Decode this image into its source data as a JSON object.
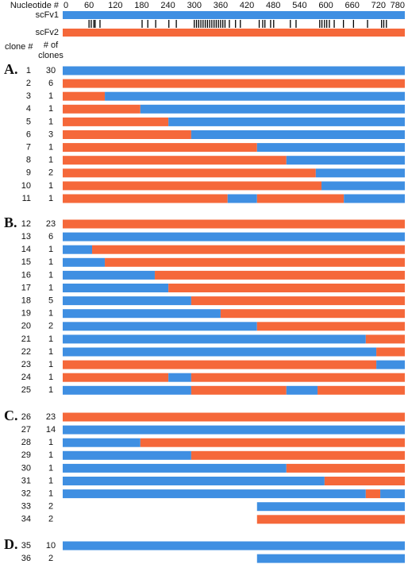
{
  "chart_data": {
    "type": "segments",
    "axis_label": "Nucleotide #",
    "xlim": [
      0,
      780
    ],
    "xticks": [
      0,
      60,
      120,
      180,
      240,
      300,
      360,
      420,
      480,
      540,
      600,
      660,
      720,
      780
    ],
    "parents": [
      {
        "name": "scFv1",
        "color": "#3f8fe2"
      },
      {
        "name": "scFv2",
        "color": "#f5683a"
      }
    ],
    "difference_positions": [
      60,
      65,
      71,
      74,
      85,
      181,
      194,
      212,
      242,
      259,
      300,
      305,
      310,
      315,
      320,
      325,
      330,
      335,
      340,
      345,
      350,
      355,
      360,
      365,
      370,
      380,
      394,
      405,
      448,
      456,
      461,
      474,
      481,
      519,
      532,
      586,
      591,
      597,
      602,
      608,
      619,
      640,
      663,
      695,
      727,
      732,
      738
    ],
    "clone_header": "clone #",
    "count_header": [
      "# of",
      "clones"
    ],
    "groups": [
      {
        "label": "A.",
        "rows": [
          {
            "clone": 1,
            "count": 30,
            "segments": [
              {
                "start": 0,
                "end": 780,
                "parent": 0
              }
            ]
          },
          {
            "clone": 2,
            "count": 6,
            "segments": [
              {
                "start": 0,
                "end": 780,
                "parent": 1
              }
            ]
          },
          {
            "clone": 3,
            "count": 1,
            "segments": [
              {
                "start": 0,
                "end": 96,
                "parent": 1
              },
              {
                "start": 96,
                "end": 780,
                "parent": 0
              }
            ]
          },
          {
            "clone": 4,
            "count": 1,
            "segments": [
              {
                "start": 0,
                "end": 177,
                "parent": 1
              },
              {
                "start": 177,
                "end": 780,
                "parent": 0
              }
            ]
          },
          {
            "clone": 5,
            "count": 1,
            "segments": [
              {
                "start": 0,
                "end": 241,
                "parent": 1
              },
              {
                "start": 241,
                "end": 780,
                "parent": 0
              }
            ]
          },
          {
            "clone": 6,
            "count": 3,
            "segments": [
              {
                "start": 0,
                "end": 293,
                "parent": 1
              },
              {
                "start": 293,
                "end": 780,
                "parent": 0
              }
            ]
          },
          {
            "clone": 7,
            "count": 1,
            "segments": [
              {
                "start": 0,
                "end": 443,
                "parent": 1
              },
              {
                "start": 443,
                "end": 780,
                "parent": 0
              }
            ]
          },
          {
            "clone": 8,
            "count": 1,
            "segments": [
              {
                "start": 0,
                "end": 510,
                "parent": 1
              },
              {
                "start": 510,
                "end": 780,
                "parent": 0
              }
            ]
          },
          {
            "clone": 9,
            "count": 2,
            "segments": [
              {
                "start": 0,
                "end": 577,
                "parent": 1
              },
              {
                "start": 577,
                "end": 780,
                "parent": 0
              }
            ]
          },
          {
            "clone": 10,
            "count": 1,
            "segments": [
              {
                "start": 0,
                "end": 590,
                "parent": 1
              },
              {
                "start": 590,
                "end": 780,
                "parent": 0
              }
            ]
          },
          {
            "clone": 11,
            "count": 1,
            "segments": [
              {
                "start": 0,
                "end": 376,
                "parent": 1
              },
              {
                "start": 376,
                "end": 443,
                "parent": 0
              },
              {
                "start": 443,
                "end": 641,
                "parent": 1
              },
              {
                "start": 641,
                "end": 780,
                "parent": 0
              }
            ]
          }
        ]
      },
      {
        "label": "B.",
        "rows": [
          {
            "clone": 12,
            "count": 23,
            "segments": [
              {
                "start": 0,
                "end": 780,
                "parent": 1
              }
            ]
          },
          {
            "clone": 13,
            "count": 6,
            "segments": [
              {
                "start": 0,
                "end": 780,
                "parent": 0
              }
            ]
          },
          {
            "clone": 14,
            "count": 1,
            "segments": [
              {
                "start": 0,
                "end": 67,
                "parent": 0
              },
              {
                "start": 67,
                "end": 780,
                "parent": 1
              }
            ]
          },
          {
            "clone": 15,
            "count": 1,
            "segments": [
              {
                "start": 0,
                "end": 96,
                "parent": 0
              },
              {
                "start": 96,
                "end": 780,
                "parent": 1
              }
            ]
          },
          {
            "clone": 16,
            "count": 1,
            "segments": [
              {
                "start": 0,
                "end": 210,
                "parent": 0
              },
              {
                "start": 210,
                "end": 780,
                "parent": 1
              }
            ]
          },
          {
            "clone": 17,
            "count": 1,
            "segments": [
              {
                "start": 0,
                "end": 241,
                "parent": 0
              },
              {
                "start": 241,
                "end": 780,
                "parent": 1
              }
            ]
          },
          {
            "clone": 18,
            "count": 5,
            "segments": [
              {
                "start": 0,
                "end": 293,
                "parent": 0
              },
              {
                "start": 293,
                "end": 780,
                "parent": 1
              }
            ]
          },
          {
            "clone": 19,
            "count": 1,
            "segments": [
              {
                "start": 0,
                "end": 360,
                "parent": 0
              },
              {
                "start": 360,
                "end": 780,
                "parent": 1
              }
            ]
          },
          {
            "clone": 20,
            "count": 2,
            "segments": [
              {
                "start": 0,
                "end": 443,
                "parent": 0
              },
              {
                "start": 443,
                "end": 780,
                "parent": 1
              }
            ]
          },
          {
            "clone": 21,
            "count": 1,
            "segments": [
              {
                "start": 0,
                "end": 691,
                "parent": 0
              },
              {
                "start": 691,
                "end": 780,
                "parent": 1
              }
            ]
          },
          {
            "clone": 22,
            "count": 1,
            "segments": [
              {
                "start": 0,
                "end": 715,
                "parent": 0
              },
              {
                "start": 715,
                "end": 780,
                "parent": 1
              }
            ]
          },
          {
            "clone": 23,
            "count": 1,
            "segments": [
              {
                "start": 0,
                "end": 715,
                "parent": 1
              },
              {
                "start": 715,
                "end": 780,
                "parent": 0
              }
            ]
          },
          {
            "clone": 24,
            "count": 1,
            "segments": [
              {
                "start": 0,
                "end": 241,
                "parent": 1
              },
              {
                "start": 241,
                "end": 293,
                "parent": 0
              },
              {
                "start": 293,
                "end": 780,
                "parent": 1
              }
            ]
          },
          {
            "clone": 25,
            "count": 1,
            "segments": [
              {
                "start": 0,
                "end": 293,
                "parent": 0
              },
              {
                "start": 293,
                "end": 510,
                "parent": 1
              },
              {
                "start": 510,
                "end": 581,
                "parent": 0
              },
              {
                "start": 581,
                "end": 780,
                "parent": 1
              }
            ]
          }
        ]
      },
      {
        "label": "C.",
        "rows": [
          {
            "clone": 26,
            "count": 23,
            "segments": [
              {
                "start": 0,
                "end": 780,
                "parent": 1
              }
            ]
          },
          {
            "clone": 27,
            "count": 14,
            "segments": [
              {
                "start": 0,
                "end": 780,
                "parent": 0
              }
            ]
          },
          {
            "clone": 28,
            "count": 1,
            "segments": [
              {
                "start": 0,
                "end": 177,
                "parent": 0
              },
              {
                "start": 177,
                "end": 780,
                "parent": 1
              }
            ]
          },
          {
            "clone": 29,
            "count": 1,
            "segments": [
              {
                "start": 0,
                "end": 293,
                "parent": 0
              },
              {
                "start": 293,
                "end": 780,
                "parent": 1
              }
            ]
          },
          {
            "clone": 30,
            "count": 1,
            "segments": [
              {
                "start": 0,
                "end": 510,
                "parent": 0
              },
              {
                "start": 510,
                "end": 780,
                "parent": 1
              }
            ]
          },
          {
            "clone": 31,
            "count": 1,
            "segments": [
              {
                "start": 0,
                "end": 597,
                "parent": 0
              },
              {
                "start": 597,
                "end": 780,
                "parent": 1
              }
            ]
          },
          {
            "clone": 32,
            "count": 1,
            "segments": [
              {
                "start": 0,
                "end": 691,
                "parent": 0
              },
              {
                "start": 691,
                "end": 724,
                "parent": 1
              },
              {
                "start": 724,
                "end": 780,
                "parent": 0
              }
            ]
          },
          {
            "clone": 33,
            "count": 2,
            "segments": [
              {
                "start": 443,
                "end": 780,
                "parent": 0
              }
            ]
          },
          {
            "clone": 34,
            "count": 2,
            "segments": [
              {
                "start": 443,
                "end": 780,
                "parent": 1
              }
            ]
          }
        ]
      },
      {
        "label": "D.",
        "rows": [
          {
            "clone": 35,
            "count": 10,
            "segments": [
              {
                "start": 0,
                "end": 780,
                "parent": 0
              }
            ]
          },
          {
            "clone": 36,
            "count": 2,
            "segments": [
              {
                "start": 443,
                "end": 780,
                "parent": 0
              }
            ]
          }
        ]
      }
    ]
  }
}
